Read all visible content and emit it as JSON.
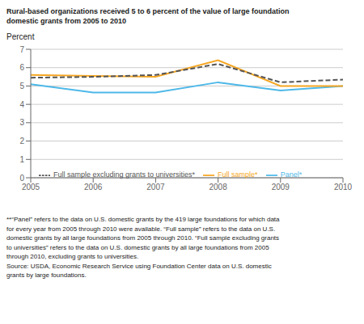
{
  "chart_data": {
    "type": "line",
    "title": [
      "Rural-based organizations received 5 to 6 percent of the value of large foundation",
      "domestic grants from 2005 to 2010"
    ],
    "y_label": "Percent",
    "x": [
      2005,
      2006,
      2007,
      2008,
      2009,
      2010
    ],
    "xlim": [
      2005,
      2010
    ],
    "xticks": [
      2005,
      2006,
      2007,
      2008,
      2009,
      2010
    ],
    "ylim": [
      0,
      7
    ],
    "yticks": [
      0,
      1,
      2,
      3,
      4,
      5,
      6,
      7
    ],
    "grid": true,
    "legend": "lower left",
    "series": [
      {
        "name": "Panel*",
        "color": "#4db8e8",
        "line_style": "solid",
        "values": [
          5.1,
          4.65,
          4.65,
          5.2,
          4.75,
          5.0
        ]
      },
      {
        "name": "Full sample*",
        "color": "#f5a623",
        "line_style": "solid",
        "values": [
          5.6,
          5.55,
          5.5,
          6.4,
          5.0,
          5.0
        ]
      },
      {
        "name": "Full sample excluding grants to universities*",
        "color": "#555555",
        "line_style": "dashed",
        "values": [
          5.45,
          5.5,
          5.6,
          6.2,
          5.2,
          5.35
        ]
      }
    ],
    "annotations": [
      "**“Panel” refers to the data on U.S. domestic grants by the 419 large foundations for which data",
      "for every year from 2005 through 2010 were available. “Full sample” refers to the data on U.S.",
      "domestic grants by all large foundations from 2005 through 2010. “Full sample excluding grants",
      "to universities” refers to the data on U.S. domestic grants by all large foundations from 2005",
      "through 2010, excluding grants to universities.",
      "Source: USDA, Economic Research Service using Foundation Center data on U.S. domestic",
      "grants by large foundations."
    ]
  }
}
